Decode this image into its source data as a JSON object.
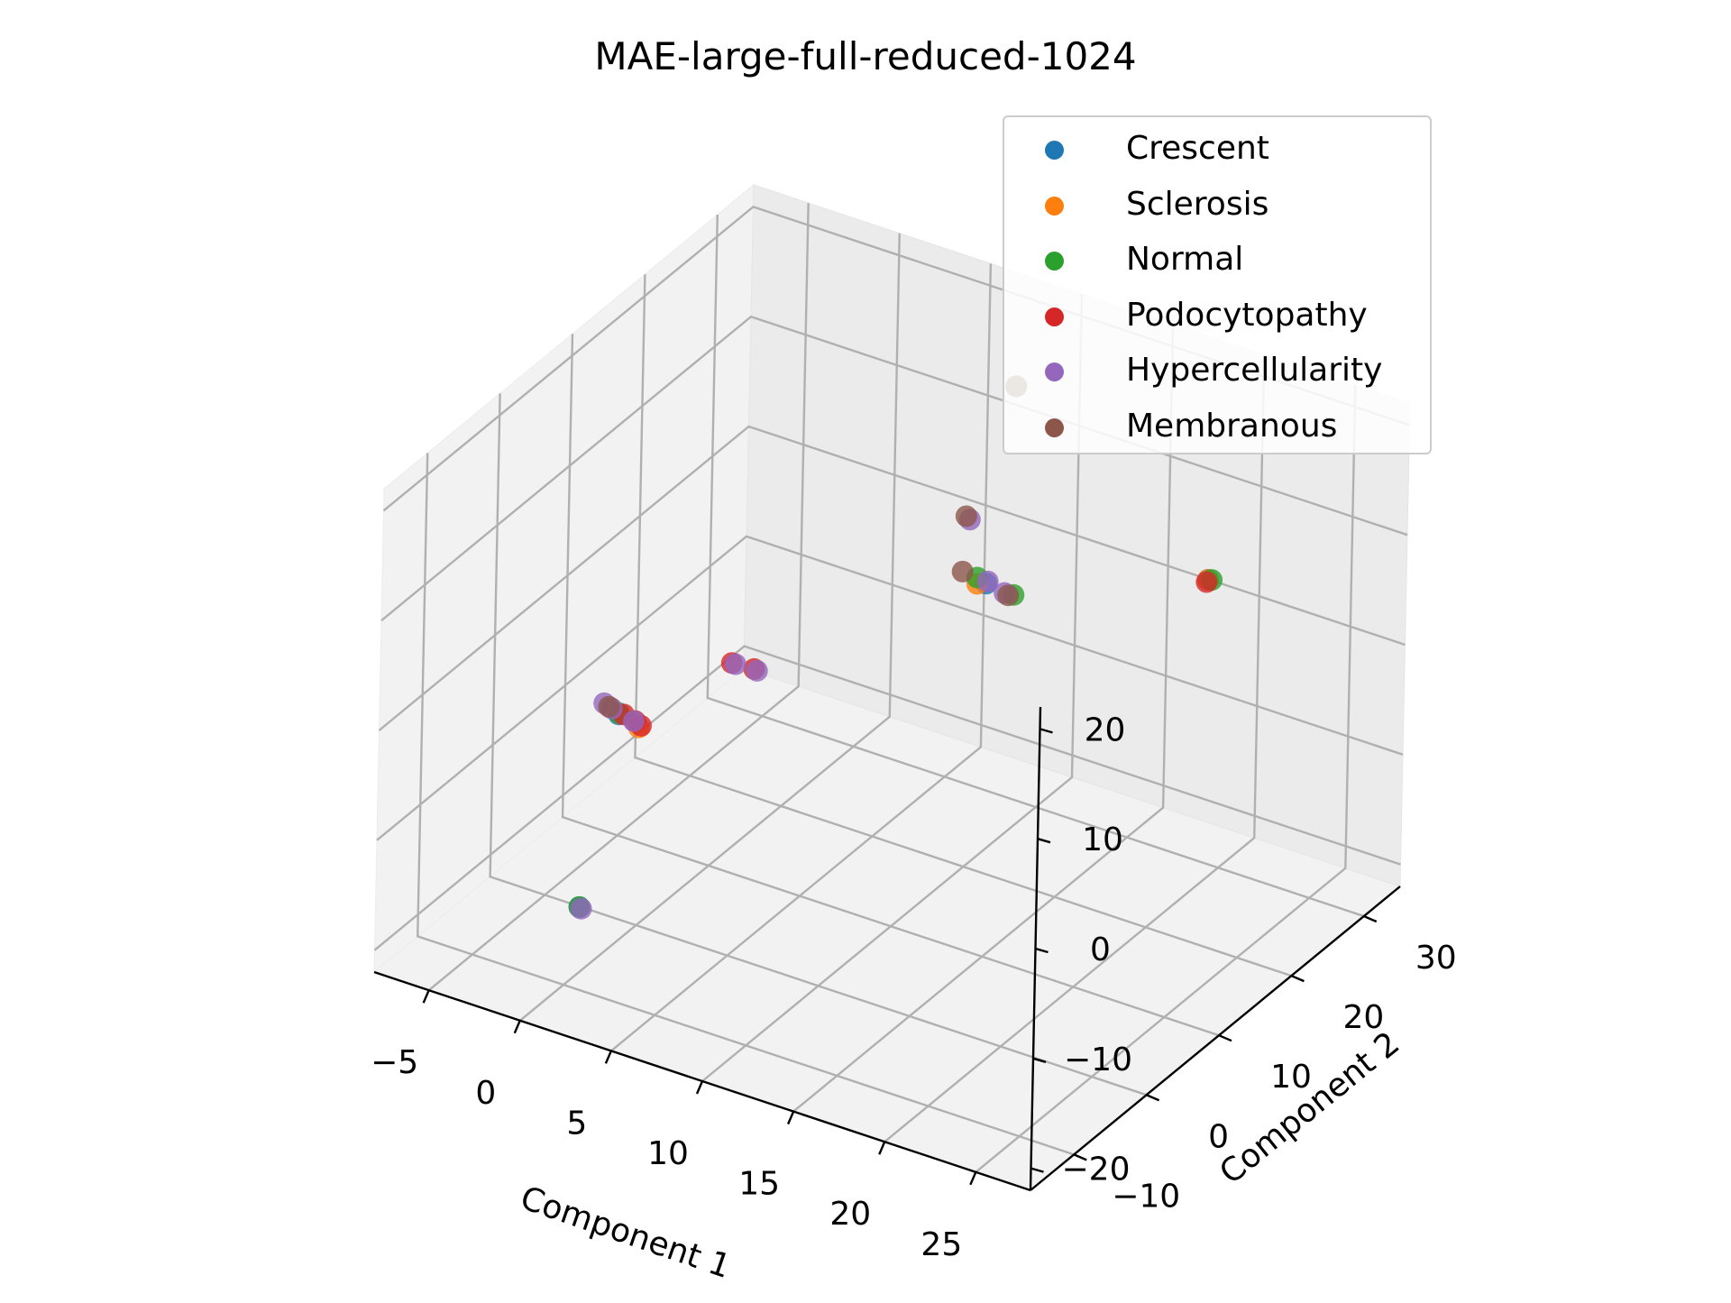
{
  "chart_data": {
    "type": "scatter",
    "title": "MAE-large-full-reduced-1024",
    "xlabel": "Component 1",
    "ylabel": "Component 2",
    "zlabel": "",
    "xticks": [
      "−5",
      "0",
      "5",
      "10",
      "15",
      "20",
      "25"
    ],
    "yticks": [
      "−10",
      "0",
      "10",
      "20",
      "30"
    ],
    "zticks": [
      "−20",
      "−10",
      "0",
      "10",
      "20"
    ],
    "xlim": [
      -8,
      28
    ],
    "ylim": [
      -16,
      35
    ],
    "zlim": [
      -22,
      22
    ],
    "grid": true,
    "legend_position": "top-right",
    "series": [
      {
        "name": "Crescent",
        "color": "#1f77b4",
        "points": [
          [
            -3.5,
            6.0,
            -8.0
          ],
          [
            10.8,
            24.0,
            20.0
          ],
          [
            9.0,
            25.0,
            0.5
          ],
          [
            20.3,
            27.0,
            6.0
          ],
          [
            0.0,
            -8.0,
            -16.0
          ]
        ]
      },
      {
        "name": "Sclerosis",
        "color": "#ff7f0e",
        "points": [
          [
            -2.2,
            5.5,
            -8.2
          ],
          [
            8.5,
            25.0,
            0.2
          ],
          [
            20.3,
            27.0,
            6.0
          ]
        ]
      },
      {
        "name": "Normal",
        "color": "#2ca02c",
        "points": [
          [
            -3.6,
            6.3,
            -8.1
          ],
          [
            10.8,
            24.0,
            20.0
          ],
          [
            8.3,
            25.5,
            0.4
          ],
          [
            10.5,
            25.0,
            0.3
          ],
          [
            20.5,
            27.0,
            6.1
          ],
          [
            0.0,
            -8.0,
            -16.0
          ]
        ]
      },
      {
        "name": "Podocytopathy",
        "color": "#d62728",
        "points": [
          [
            -3.3,
            6.2,
            -8.0
          ],
          [
            -2.6,
            6.0,
            -8.1
          ],
          [
            -2.2,
            5.8,
            -8.2
          ],
          [
            -0.5,
            14.0,
            -6.0
          ],
          [
            0.6,
            14.3,
            -6.1
          ],
          [
            20.3,
            26.8,
            5.9
          ]
        ]
      },
      {
        "name": "Hypercellularity",
        "color": "#9467bd",
        "points": [
          [
            -4.5,
            6.5,
            -7.8
          ],
          [
            -4.0,
            6.3,
            -7.9
          ],
          [
            -2.6,
            5.8,
            -8.0
          ],
          [
            -0.3,
            14.0,
            -6.0
          ],
          [
            0.8,
            14.2,
            -6.1
          ],
          [
            12.5,
            13.5,
            14.5
          ],
          [
            9.0,
            25.2,
            0.6
          ],
          [
            10.0,
            25.0,
            0.2
          ],
          [
            0.1,
            -8.0,
            -16.1
          ]
        ]
      },
      {
        "name": "Membranous",
        "color": "#8c564b",
        "points": [
          [
            -4.2,
            6.4,
            -7.9
          ],
          [
            10.8,
            24.0,
            20.0
          ],
          [
            12.3,
            13.5,
            14.7
          ],
          [
            7.5,
            25.5,
            0.5
          ],
          [
            10.2,
            25.0,
            0.1
          ]
        ]
      }
    ]
  }
}
